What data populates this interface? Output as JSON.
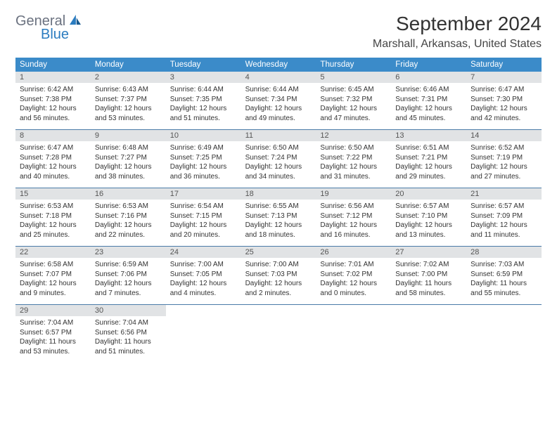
{
  "logo": {
    "general": "General",
    "blue": "Blue"
  },
  "title": "September 2024",
  "location": "Marshall, Arkansas, United States",
  "dayHeaders": [
    "Sunday",
    "Monday",
    "Tuesday",
    "Wednesday",
    "Thursday",
    "Friday",
    "Saturday"
  ],
  "colors": {
    "header_bg": "#3b8bc9",
    "header_text": "#ffffff",
    "daynum_bg": "#e1e3e5",
    "week_border": "#4a7ba8",
    "logo_gray": "#6b7280",
    "logo_blue": "#2b7cc0"
  },
  "weeks": [
    [
      {
        "num": "1",
        "sunrise": "Sunrise: 6:42 AM",
        "sunset": "Sunset: 7:38 PM",
        "daylight": "Daylight: 12 hours and 56 minutes."
      },
      {
        "num": "2",
        "sunrise": "Sunrise: 6:43 AM",
        "sunset": "Sunset: 7:37 PM",
        "daylight": "Daylight: 12 hours and 53 minutes."
      },
      {
        "num": "3",
        "sunrise": "Sunrise: 6:44 AM",
        "sunset": "Sunset: 7:35 PM",
        "daylight": "Daylight: 12 hours and 51 minutes."
      },
      {
        "num": "4",
        "sunrise": "Sunrise: 6:44 AM",
        "sunset": "Sunset: 7:34 PM",
        "daylight": "Daylight: 12 hours and 49 minutes."
      },
      {
        "num": "5",
        "sunrise": "Sunrise: 6:45 AM",
        "sunset": "Sunset: 7:32 PM",
        "daylight": "Daylight: 12 hours and 47 minutes."
      },
      {
        "num": "6",
        "sunrise": "Sunrise: 6:46 AM",
        "sunset": "Sunset: 7:31 PM",
        "daylight": "Daylight: 12 hours and 45 minutes."
      },
      {
        "num": "7",
        "sunrise": "Sunrise: 6:47 AM",
        "sunset": "Sunset: 7:30 PM",
        "daylight": "Daylight: 12 hours and 42 minutes."
      }
    ],
    [
      {
        "num": "8",
        "sunrise": "Sunrise: 6:47 AM",
        "sunset": "Sunset: 7:28 PM",
        "daylight": "Daylight: 12 hours and 40 minutes."
      },
      {
        "num": "9",
        "sunrise": "Sunrise: 6:48 AM",
        "sunset": "Sunset: 7:27 PM",
        "daylight": "Daylight: 12 hours and 38 minutes."
      },
      {
        "num": "10",
        "sunrise": "Sunrise: 6:49 AM",
        "sunset": "Sunset: 7:25 PM",
        "daylight": "Daylight: 12 hours and 36 minutes."
      },
      {
        "num": "11",
        "sunrise": "Sunrise: 6:50 AM",
        "sunset": "Sunset: 7:24 PM",
        "daylight": "Daylight: 12 hours and 34 minutes."
      },
      {
        "num": "12",
        "sunrise": "Sunrise: 6:50 AM",
        "sunset": "Sunset: 7:22 PM",
        "daylight": "Daylight: 12 hours and 31 minutes."
      },
      {
        "num": "13",
        "sunrise": "Sunrise: 6:51 AM",
        "sunset": "Sunset: 7:21 PM",
        "daylight": "Daylight: 12 hours and 29 minutes."
      },
      {
        "num": "14",
        "sunrise": "Sunrise: 6:52 AM",
        "sunset": "Sunset: 7:19 PM",
        "daylight": "Daylight: 12 hours and 27 minutes."
      }
    ],
    [
      {
        "num": "15",
        "sunrise": "Sunrise: 6:53 AM",
        "sunset": "Sunset: 7:18 PM",
        "daylight": "Daylight: 12 hours and 25 minutes."
      },
      {
        "num": "16",
        "sunrise": "Sunrise: 6:53 AM",
        "sunset": "Sunset: 7:16 PM",
        "daylight": "Daylight: 12 hours and 22 minutes."
      },
      {
        "num": "17",
        "sunrise": "Sunrise: 6:54 AM",
        "sunset": "Sunset: 7:15 PM",
        "daylight": "Daylight: 12 hours and 20 minutes."
      },
      {
        "num": "18",
        "sunrise": "Sunrise: 6:55 AM",
        "sunset": "Sunset: 7:13 PM",
        "daylight": "Daylight: 12 hours and 18 minutes."
      },
      {
        "num": "19",
        "sunrise": "Sunrise: 6:56 AM",
        "sunset": "Sunset: 7:12 PM",
        "daylight": "Daylight: 12 hours and 16 minutes."
      },
      {
        "num": "20",
        "sunrise": "Sunrise: 6:57 AM",
        "sunset": "Sunset: 7:10 PM",
        "daylight": "Daylight: 12 hours and 13 minutes."
      },
      {
        "num": "21",
        "sunrise": "Sunrise: 6:57 AM",
        "sunset": "Sunset: 7:09 PM",
        "daylight": "Daylight: 12 hours and 11 minutes."
      }
    ],
    [
      {
        "num": "22",
        "sunrise": "Sunrise: 6:58 AM",
        "sunset": "Sunset: 7:07 PM",
        "daylight": "Daylight: 12 hours and 9 minutes."
      },
      {
        "num": "23",
        "sunrise": "Sunrise: 6:59 AM",
        "sunset": "Sunset: 7:06 PM",
        "daylight": "Daylight: 12 hours and 7 minutes."
      },
      {
        "num": "24",
        "sunrise": "Sunrise: 7:00 AM",
        "sunset": "Sunset: 7:05 PM",
        "daylight": "Daylight: 12 hours and 4 minutes."
      },
      {
        "num": "25",
        "sunrise": "Sunrise: 7:00 AM",
        "sunset": "Sunset: 7:03 PM",
        "daylight": "Daylight: 12 hours and 2 minutes."
      },
      {
        "num": "26",
        "sunrise": "Sunrise: 7:01 AM",
        "sunset": "Sunset: 7:02 PM",
        "daylight": "Daylight: 12 hours and 0 minutes."
      },
      {
        "num": "27",
        "sunrise": "Sunrise: 7:02 AM",
        "sunset": "Sunset: 7:00 PM",
        "daylight": "Daylight: 11 hours and 58 minutes."
      },
      {
        "num": "28",
        "sunrise": "Sunrise: 7:03 AM",
        "sunset": "Sunset: 6:59 PM",
        "daylight": "Daylight: 11 hours and 55 minutes."
      }
    ],
    [
      {
        "num": "29",
        "sunrise": "Sunrise: 7:04 AM",
        "sunset": "Sunset: 6:57 PM",
        "daylight": "Daylight: 11 hours and 53 minutes."
      },
      {
        "num": "30",
        "sunrise": "Sunrise: 7:04 AM",
        "sunset": "Sunset: 6:56 PM",
        "daylight": "Daylight: 11 hours and 51 minutes."
      },
      null,
      null,
      null,
      null,
      null
    ]
  ]
}
